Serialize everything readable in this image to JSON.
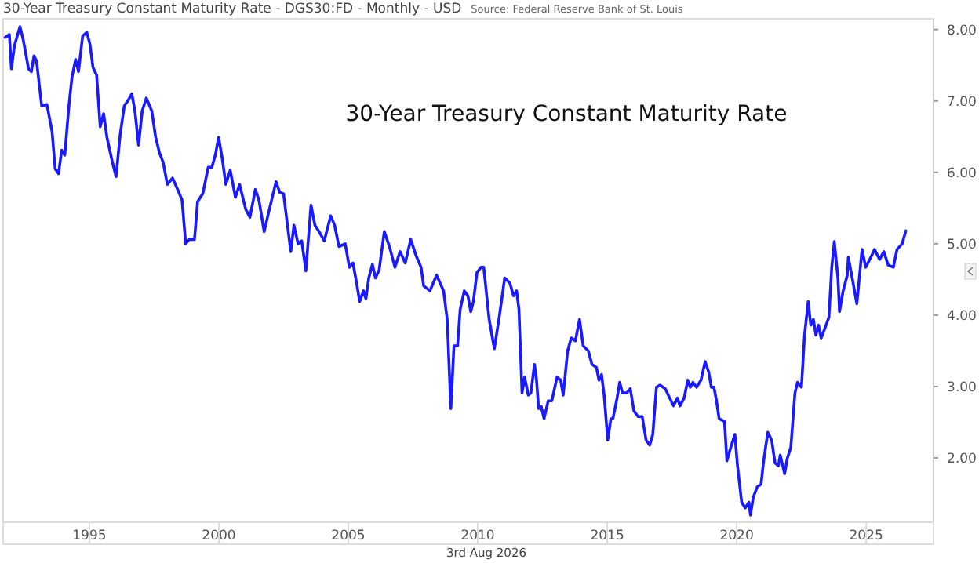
{
  "chart_data": {
    "type": "line",
    "title": "30-Year Treasury Constant Maturity Rate",
    "subtitle": "30-Year Treasury Constant Maturity Rate - DGS30:FD - Monthly - USD",
    "annotations": [
      "Source: Federal Reserve Bank of St. Louis",
      "3rd Aug 2026"
    ],
    "xlim": [
      1991.67,
      2027.6
    ],
    "xticks": [
      1995,
      2000,
      2005,
      2010,
      2015,
      2020,
      2025
    ],
    "ylim": [
      1.1,
      8.15
    ],
    "yticks": [
      {
        "value": 2,
        "label": "2.00"
      },
      {
        "value": 3,
        "label": "3.00"
      },
      {
        "value": 4,
        "label": "4.00"
      },
      {
        "value": 5,
        "label": "5.00"
      },
      {
        "value": 6,
        "label": "6.00"
      },
      {
        "value": 7,
        "label": "7.00"
      },
      {
        "value": 8,
        "label": "8.00"
      }
    ],
    "marker": "none",
    "line_style": "solid",
    "series": [
      {
        "color": "#1a1aff",
        "x": [
          1991.75,
          1991.91,
          1991.99,
          1992.11,
          1992.32,
          1992.45,
          1992.65,
          1992.76,
          1992.86,
          1992.96,
          1993.16,
          1993.36,
          1993.56,
          1993.68,
          1993.81,
          1993.93,
          1994.05,
          1994.21,
          1994.33,
          1994.47,
          1994.58,
          1994.74,
          1994.9,
          1995.02,
          1995.14,
          1995.28,
          1995.42,
          1995.55,
          1995.68,
          1995.89,
          1996.03,
          1996.19,
          1996.35,
          1996.5,
          1996.64,
          1996.76,
          1996.9,
          1997.04,
          1997.2,
          1997.41,
          1997.56,
          1997.71,
          1997.85,
          1998.01,
          1998.21,
          1998.41,
          1998.58,
          1998.72,
          1998.86,
          1999.06,
          1999.18,
          1999.38,
          1999.59,
          1999.73,
          1999.87,
          1999.99,
          2000.13,
          2000.27,
          2000.44,
          2000.64,
          2000.8,
          2001.04,
          2001.2,
          2001.41,
          2001.55,
          2001.75,
          2001.95,
          2002.21,
          2002.35,
          2002.5,
          2002.65,
          2002.78,
          2002.9,
          2003.06,
          2003.2,
          2003.36,
          2003.56,
          2003.71,
          2003.87,
          2004.07,
          2004.32,
          2004.47,
          2004.64,
          2004.88,
          2005.04,
          2005.18,
          2005.32,
          2005.44,
          2005.59,
          2005.68,
          2005.79,
          2005.93,
          2006.05,
          2006.19,
          2006.39,
          2006.59,
          2006.8,
          2007.0,
          2007.2,
          2007.41,
          2007.61,
          2007.81,
          2007.91,
          2008.15,
          2008.41,
          2008.68,
          2008.82,
          2008.96,
          2009.08,
          2009.22,
          2009.32,
          2009.48,
          2009.62,
          2009.73,
          2009.83,
          2009.97,
          2010.13,
          2010.23,
          2010.44,
          2010.64,
          2010.84,
          2011.04,
          2011.24,
          2011.38,
          2011.5,
          2011.59,
          2011.71,
          2011.81,
          2011.95,
          2012.05,
          2012.19,
          2012.27,
          2012.35,
          2012.45,
          2012.56,
          2012.72,
          2012.86,
          2013.06,
          2013.2,
          2013.3,
          2013.47,
          2013.61,
          2013.77,
          2013.93,
          2014.07,
          2014.27,
          2014.41,
          2014.58,
          2014.68,
          2014.78,
          2014.88,
          2015.02,
          2015.14,
          2015.22,
          2015.38,
          2015.48,
          2015.59,
          2015.75,
          2015.89,
          2016.03,
          2016.19,
          2016.35,
          2016.5,
          2016.64,
          2016.76,
          2016.9,
          2017.04,
          2017.24,
          2017.41,
          2017.56,
          2017.71,
          2017.81,
          2017.97,
          2018.11,
          2018.21,
          2018.31,
          2018.45,
          2018.62,
          2018.78,
          2018.92,
          2019.02,
          2019.12,
          2019.22,
          2019.32,
          2019.53,
          2019.62,
          2019.77,
          2019.93,
          2020.03,
          2020.19,
          2020.33,
          2020.47,
          2020.53,
          2020.64,
          2020.8,
          2020.94,
          2021.04,
          2021.2,
          2021.35,
          2021.48,
          2021.61,
          2021.68,
          2021.85,
          2021.95,
          2022.09,
          2022.25,
          2022.35,
          2022.5,
          2022.62,
          2022.76,
          2022.86,
          2022.96,
          2023.06,
          2023.16,
          2023.26,
          2023.42,
          2023.56,
          2023.67,
          2023.77,
          2023.91,
          2023.97,
          2024.11,
          2024.27,
          2024.31,
          2024.44,
          2024.64,
          2024.84,
          2024.98,
          2025.18,
          2025.32,
          2025.52,
          2025.68,
          2025.85,
          2026.05,
          2026.19,
          2026.39,
          2026.53
        ],
        "values": [
          7.89,
          7.93,
          7.45,
          7.78,
          8.04,
          7.85,
          7.45,
          7.41,
          7.63,
          7.56,
          6.93,
          6.95,
          6.57,
          6.05,
          5.98,
          6.31,
          6.24,
          6.93,
          7.34,
          7.58,
          7.41,
          7.91,
          7.96,
          7.8,
          7.47,
          7.36,
          6.64,
          6.82,
          6.49,
          6.14,
          5.94,
          6.53,
          6.93,
          7.01,
          7.1,
          6.86,
          6.38,
          6.86,
          7.04,
          6.86,
          6.49,
          6.27,
          6.14,
          5.83,
          5.92,
          5.76,
          5.61,
          5.0,
          5.06,
          5.06,
          5.59,
          5.7,
          6.07,
          6.07,
          6.25,
          6.49,
          6.2,
          5.83,
          6.03,
          5.65,
          5.83,
          5.48,
          5.37,
          5.76,
          5.61,
          5.17,
          5.48,
          5.87,
          5.72,
          5.7,
          5.26,
          4.89,
          5.26,
          5.0,
          5.04,
          4.62,
          5.54,
          5.26,
          5.17,
          5.04,
          5.39,
          5.26,
          4.96,
          5.0,
          4.67,
          4.73,
          4.45,
          4.19,
          4.34,
          4.23,
          4.52,
          4.71,
          4.52,
          4.63,
          5.17,
          4.96,
          4.67,
          4.89,
          4.73,
          5.06,
          4.84,
          4.67,
          4.41,
          4.34,
          4.56,
          4.34,
          3.94,
          2.69,
          3.57,
          3.57,
          4.08,
          4.34,
          4.27,
          4.05,
          4.19,
          4.6,
          4.67,
          4.67,
          3.94,
          3.53,
          4.0,
          4.52,
          4.45,
          4.27,
          4.34,
          4.08,
          2.91,
          3.13,
          2.88,
          2.91,
          3.31,
          3.09,
          2.69,
          2.72,
          2.55,
          2.8,
          2.8,
          3.13,
          3.09,
          2.88,
          3.5,
          3.68,
          3.64,
          3.94,
          3.57,
          3.5,
          3.31,
          3.27,
          3.09,
          3.17,
          2.88,
          2.25,
          2.55,
          2.55,
          2.84,
          3.06,
          2.91,
          2.91,
          2.97,
          2.66,
          2.58,
          2.58,
          2.25,
          2.18,
          2.33,
          2.99,
          3.02,
          2.97,
          2.84,
          2.73,
          2.84,
          2.73,
          2.84,
          3.09,
          2.99,
          3.06,
          2.99,
          3.09,
          3.35,
          3.2,
          2.99,
          2.99,
          2.8,
          2.55,
          2.51,
          1.96,
          2.15,
          2.33,
          1.89,
          1.38,
          1.3,
          1.38,
          1.2,
          1.45,
          1.6,
          1.63,
          1.96,
          2.36,
          2.25,
          1.93,
          1.89,
          2.04,
          1.78,
          1.99,
          2.15,
          2.91,
          3.06,
          2.99,
          3.72,
          4.19,
          3.86,
          3.94,
          3.72,
          3.86,
          3.68,
          3.83,
          3.97,
          4.67,
          5.03,
          4.52,
          4.05,
          4.34,
          4.56,
          4.81,
          4.56,
          4.16,
          4.92,
          4.67,
          4.81,
          4.92,
          4.78,
          4.89,
          4.7,
          4.67,
          4.92,
          5.0,
          5.18
        ]
      }
    ]
  }
}
